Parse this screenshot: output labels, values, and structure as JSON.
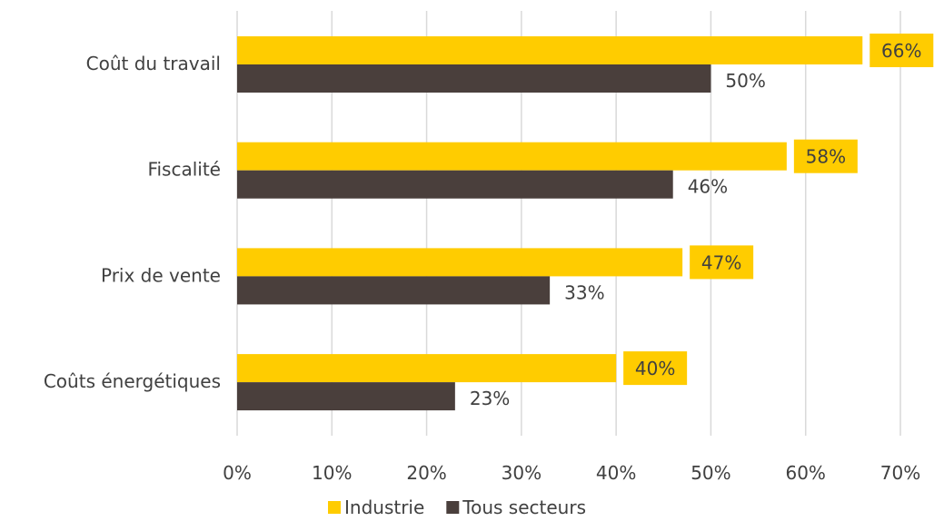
{
  "chart_data": {
    "type": "bar",
    "orientation": "horizontal",
    "categories": [
      "Coût du travail",
      "Fiscalité",
      "Prix de vente",
      "Coûts énergétiques"
    ],
    "series": [
      {
        "name": "Industrie",
        "values": [
          66,
          58,
          47,
          40
        ],
        "labels": [
          "66%",
          "58%",
          "47%",
          "40%"
        ],
        "color": "#FFCC00"
      },
      {
        "name": "Tous secteurs",
        "values": [
          50,
          46,
          33,
          23
        ],
        "labels": [
          "50%",
          "46%",
          "33%",
          "23%"
        ],
        "color": "#4A3F3C"
      }
    ],
    "xlim": [
      0,
      70
    ],
    "x_ticks": [
      "0%",
      "10%",
      "20%",
      "30%",
      "40%",
      "50%",
      "60%",
      "70%"
    ],
    "grid": "vertical",
    "legend": "bottom-center"
  }
}
